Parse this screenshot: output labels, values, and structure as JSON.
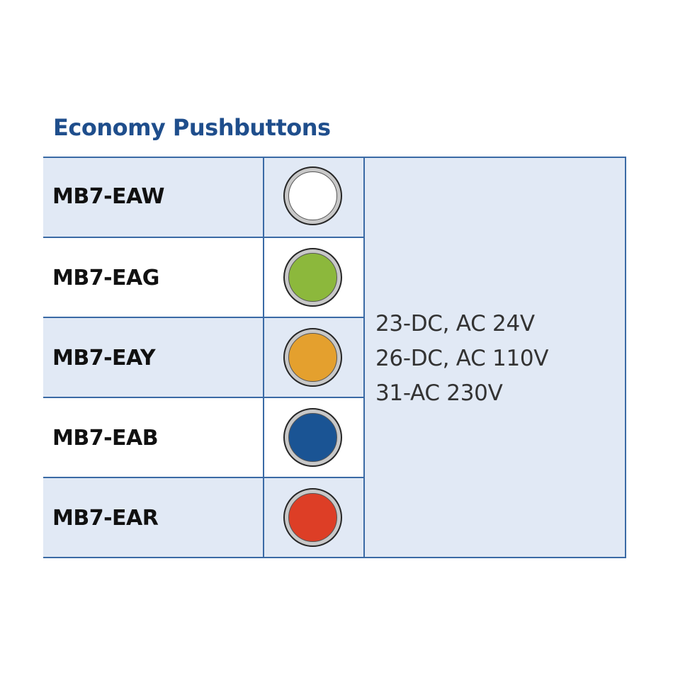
{
  "title": "Economy Pushbuttons",
  "rows": [
    {
      "model": "MB7-EAW",
      "lamp_color": "#ffffff",
      "lamp_icon": "white-lamp-icon"
    },
    {
      "model": "MB7-EAG",
      "lamp_color": "#8cb83c",
      "lamp_icon": "green-lamp-icon"
    },
    {
      "model": "MB7-EAY",
      "lamp_color": "#e4a02e",
      "lamp_icon": "yellow-lamp-icon"
    },
    {
      "model": "MB7-EAB",
      "lamp_color": "#1a5494",
      "lamp_icon": "blue-lamp-icon"
    },
    {
      "model": "MB7-EAR",
      "lamp_color": "#dd3e26",
      "lamp_icon": "red-lamp-icon"
    }
  ],
  "voltages": [
    "23-DC, AC 24V",
    "26-DC, AC 110V",
    "31-AC 230V"
  ]
}
